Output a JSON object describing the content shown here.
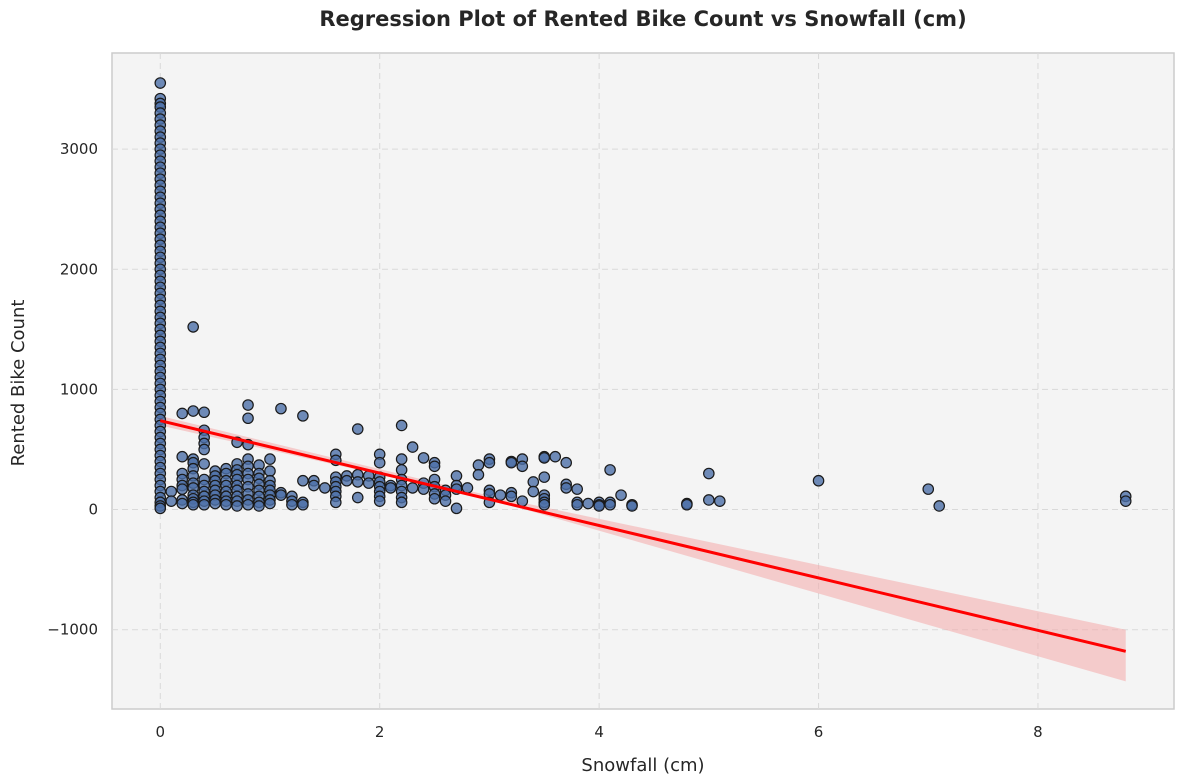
{
  "chart_data": {
    "type": "scatter",
    "title": "Regression Plot of Rented Bike Count vs Snowfall (cm)",
    "xlabel": "Snowfall (cm)",
    "ylabel": "Rented Bike Count",
    "xlim": [
      -0.44,
      9.24
    ],
    "ylim": [
      -1660,
      3800
    ],
    "xticks": [
      0,
      2,
      4,
      6,
      8
    ],
    "yticks": [
      -1000,
      0,
      1000,
      2000,
      3000
    ],
    "ytick_labels": [
      "−1000",
      "0",
      "1000",
      "2000",
      "3000"
    ],
    "grid": true,
    "colors": {
      "points": "#4c6fa8",
      "point_edge": "#1a1a1a",
      "line": "#ff0000",
      "band": "#f4aaaa",
      "plot_bg": "#f4f4f4"
    },
    "regression": {
      "x": [
        0,
        8.8
      ],
      "y": [
        740,
        -1180
      ],
      "ci_x": [
        0,
        3.0,
        8.8
      ],
      "ci_low": [
        700,
        85,
        -1430
      ],
      "ci_high": [
        780,
        115,
        -1000
      ]
    },
    "points": [
      [
        0,
        3550
      ],
      [
        0,
        3420
      ],
      [
        0,
        3380
      ],
      [
        0,
        3350
      ],
      [
        0,
        3300
      ],
      [
        0,
        3250
      ],
      [
        0,
        3200
      ],
      [
        0,
        3150
      ],
      [
        0,
        3100
      ],
      [
        0,
        3050
      ],
      [
        0,
        3000
      ],
      [
        0,
        2950
      ],
      [
        0,
        2900
      ],
      [
        0,
        2850
      ],
      [
        0,
        2800
      ],
      [
        0,
        2750
      ],
      [
        0,
        2700
      ],
      [
        0,
        2650
      ],
      [
        0,
        2600
      ],
      [
        0,
        2550
      ],
      [
        0,
        2500
      ],
      [
        0,
        2450
      ],
      [
        0,
        2400
      ],
      [
        0,
        2350
      ],
      [
        0,
        2300
      ],
      [
        0,
        2250
      ],
      [
        0,
        2200
      ],
      [
        0,
        2150
      ],
      [
        0,
        2100
      ],
      [
        0,
        2050
      ],
      [
        0,
        2000
      ],
      [
        0,
        1950
      ],
      [
        0,
        1900
      ],
      [
        0,
        1850
      ],
      [
        0,
        1800
      ],
      [
        0,
        1750
      ],
      [
        0,
        1700
      ],
      [
        0,
        1650
      ],
      [
        0,
        1600
      ],
      [
        0,
        1550
      ],
      [
        0,
        1500
      ],
      [
        0,
        1450
      ],
      [
        0,
        1400
      ],
      [
        0,
        1350
      ],
      [
        0,
        1300
      ],
      [
        0,
        1250
      ],
      [
        0,
        1200
      ],
      [
        0,
        1150
      ],
      [
        0,
        1100
      ],
      [
        0,
        1050
      ],
      [
        0,
        1000
      ],
      [
        0,
        950
      ],
      [
        0,
        900
      ],
      [
        0,
        850
      ],
      [
        0,
        800
      ],
      [
        0,
        750
      ],
      [
        0,
        700
      ],
      [
        0,
        650
      ],
      [
        0,
        600
      ],
      [
        0,
        550
      ],
      [
        0,
        500
      ],
      [
        0,
        450
      ],
      [
        0,
        400
      ],
      [
        0,
        350
      ],
      [
        0,
        300
      ],
      [
        0,
        250
      ],
      [
        0,
        200
      ],
      [
        0,
        150
      ],
      [
        0,
        100
      ],
      [
        0,
        60
      ],
      [
        0,
        30
      ],
      [
        0,
        10
      ],
      [
        0.1,
        150
      ],
      [
        0.1,
        70
      ],
      [
        0.2,
        800
      ],
      [
        0.2,
        440
      ],
      [
        0.2,
        300
      ],
      [
        0.2,
        250
      ],
      [
        0.2,
        200
      ],
      [
        0.2,
        170
      ],
      [
        0.2,
        80
      ],
      [
        0.2,
        50
      ],
      [
        0.3,
        1520
      ],
      [
        0.3,
        820
      ],
      [
        0.3,
        420
      ],
      [
        0.3,
        390
      ],
      [
        0.3,
        340
      ],
      [
        0.3,
        280
      ],
      [
        0.3,
        220
      ],
      [
        0.3,
        180
      ],
      [
        0.3,
        120
      ],
      [
        0.3,
        90
      ],
      [
        0.3,
        60
      ],
      [
        0.3,
        40
      ],
      [
        0.4,
        810
      ],
      [
        0.4,
        660
      ],
      [
        0.4,
        600
      ],
      [
        0.4,
        550
      ],
      [
        0.4,
        500
      ],
      [
        0.4,
        380
      ],
      [
        0.4,
        250
      ],
      [
        0.4,
        200
      ],
      [
        0.4,
        150
      ],
      [
        0.4,
        110
      ],
      [
        0.4,
        70
      ],
      [
        0.4,
        40
      ],
      [
        0.5,
        320
      ],
      [
        0.5,
        280
      ],
      [
        0.5,
        240
      ],
      [
        0.5,
        200
      ],
      [
        0.5,
        160
      ],
      [
        0.5,
        120
      ],
      [
        0.5,
        80
      ],
      [
        0.5,
        50
      ],
      [
        0.6,
        340
      ],
      [
        0.6,
        300
      ],
      [
        0.6,
        240
      ],
      [
        0.6,
        200
      ],
      [
        0.6,
        150
      ],
      [
        0.6,
        110
      ],
      [
        0.6,
        70
      ],
      [
        0.6,
        40
      ],
      [
        0.7,
        560
      ],
      [
        0.7,
        380
      ],
      [
        0.7,
        330
      ],
      [
        0.7,
        290
      ],
      [
        0.7,
        250
      ],
      [
        0.7,
        200
      ],
      [
        0.7,
        160
      ],
      [
        0.7,
        110
      ],
      [
        0.7,
        70
      ],
      [
        0.7,
        30
      ],
      [
        0.8,
        870
      ],
      [
        0.8,
        760
      ],
      [
        0.8,
        540
      ],
      [
        0.8,
        420
      ],
      [
        0.8,
        360
      ],
      [
        0.8,
        300
      ],
      [
        0.8,
        250
      ],
      [
        0.8,
        190
      ],
      [
        0.8,
        130
      ],
      [
        0.8,
        80
      ],
      [
        0.8,
        40
      ],
      [
        0.9,
        370
      ],
      [
        0.9,
        300
      ],
      [
        0.9,
        260
      ],
      [
        0.9,
        210
      ],
      [
        0.9,
        160
      ],
      [
        0.9,
        110
      ],
      [
        0.9,
        60
      ],
      [
        0.9,
        30
      ],
      [
        1.0,
        420
      ],
      [
        1.0,
        320
      ],
      [
        1.0,
        240
      ],
      [
        1.0,
        200
      ],
      [
        1.0,
        160
      ],
      [
        1.0,
        120
      ],
      [
        1.0,
        80
      ],
      [
        1.0,
        50
      ],
      [
        1.1,
        840
      ],
      [
        1.1,
        140
      ],
      [
        1.1,
        120
      ],
      [
        1.2,
        110
      ],
      [
        1.2,
        70
      ],
      [
        1.2,
        40
      ],
      [
        1.3,
        780
      ],
      [
        1.3,
        240
      ],
      [
        1.3,
        60
      ],
      [
        1.3,
        40
      ],
      [
        1.4,
        240
      ],
      [
        1.4,
        200
      ],
      [
        1.5,
        180
      ],
      [
        1.6,
        460
      ],
      [
        1.6,
        410
      ],
      [
        1.6,
        270
      ],
      [
        1.6,
        230
      ],
      [
        1.6,
        190
      ],
      [
        1.6,
        150
      ],
      [
        1.6,
        110
      ],
      [
        1.6,
        60
      ],
      [
        1.7,
        280
      ],
      [
        1.7,
        240
      ],
      [
        1.8,
        670
      ],
      [
        1.8,
        290
      ],
      [
        1.8,
        230
      ],
      [
        1.8,
        100
      ],
      [
        1.9,
        280
      ],
      [
        1.9,
        220
      ],
      [
        2.0,
        460
      ],
      [
        2.0,
        390
      ],
      [
        2.0,
        270
      ],
      [
        2.0,
        230
      ],
      [
        2.0,
        190
      ],
      [
        2.0,
        150
      ],
      [
        2.0,
        110
      ],
      [
        2.0,
        70
      ],
      [
        2.1,
        200
      ],
      [
        2.1,
        180
      ],
      [
        2.2,
        700
      ],
      [
        2.2,
        420
      ],
      [
        2.2,
        330
      ],
      [
        2.2,
        250
      ],
      [
        2.2,
        200
      ],
      [
        2.2,
        150
      ],
      [
        2.2,
        100
      ],
      [
        2.2,
        60
      ],
      [
        2.3,
        520
      ],
      [
        2.3,
        180
      ],
      [
        2.4,
        430
      ],
      [
        2.4,
        220
      ],
      [
        2.4,
        170
      ],
      [
        2.5,
        390
      ],
      [
        2.5,
        360
      ],
      [
        2.5,
        250
      ],
      [
        2.5,
        190
      ],
      [
        2.5,
        130
      ],
      [
        2.5,
        90
      ],
      [
        2.6,
        160
      ],
      [
        2.6,
        120
      ],
      [
        2.6,
        70
      ],
      [
        2.7,
        280
      ],
      [
        2.7,
        200
      ],
      [
        2.7,
        170
      ],
      [
        2.7,
        10
      ],
      [
        2.8,
        180
      ],
      [
        2.9,
        370
      ],
      [
        2.9,
        290
      ],
      [
        3.0,
        420
      ],
      [
        3.0,
        390
      ],
      [
        3.0,
        160
      ],
      [
        3.0,
        130
      ],
      [
        3.0,
        60
      ],
      [
        3.1,
        120
      ],
      [
        3.2,
        400
      ],
      [
        3.2,
        390
      ],
      [
        3.2,
        140
      ],
      [
        3.2,
        110
      ],
      [
        3.3,
        420
      ],
      [
        3.3,
        360
      ],
      [
        3.3,
        70
      ],
      [
        3.4,
        230
      ],
      [
        3.4,
        150
      ],
      [
        3.5,
        440
      ],
      [
        3.5,
        430
      ],
      [
        3.5,
        270
      ],
      [
        3.5,
        120
      ],
      [
        3.5,
        90
      ],
      [
        3.5,
        60
      ],
      [
        3.5,
        40
      ],
      [
        3.6,
        440
      ],
      [
        3.7,
        390
      ],
      [
        3.7,
        210
      ],
      [
        3.7,
        180
      ],
      [
        3.8,
        170
      ],
      [
        3.8,
        60
      ],
      [
        3.8,
        40
      ],
      [
        3.9,
        50
      ],
      [
        4.0,
        60
      ],
      [
        4.0,
        40
      ],
      [
        4.0,
        30
      ],
      [
        4.1,
        330
      ],
      [
        4.1,
        60
      ],
      [
        4.1,
        40
      ],
      [
        4.2,
        120
      ],
      [
        4.3,
        40
      ],
      [
        4.3,
        30
      ],
      [
        4.8,
        50
      ],
      [
        4.8,
        40
      ],
      [
        5.0,
        300
      ],
      [
        5.0,
        80
      ],
      [
        5.1,
        70
      ],
      [
        6.0,
        240
      ],
      [
        7.0,
        170
      ],
      [
        7.1,
        30
      ],
      [
        8.8,
        110
      ],
      [
        8.8,
        70
      ]
    ]
  }
}
